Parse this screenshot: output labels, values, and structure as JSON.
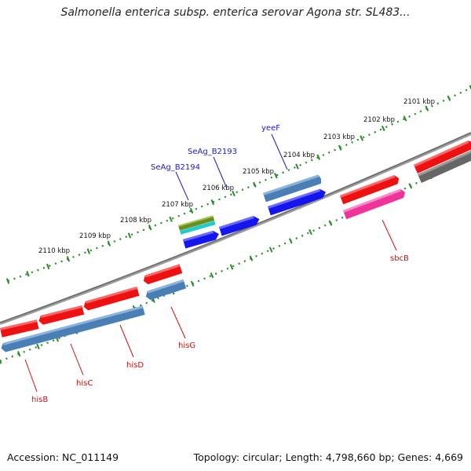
{
  "title": "Salmonella enterica subsp. enterica serovar Agona str. SL483...",
  "footer": {
    "accession": "Accession: NC_011149",
    "summary": "Topology: circular; Length: 4,798,660 bp; Genes: 4,669"
  },
  "colors": {
    "outer_ruler": "#2a8a2a",
    "backbone": "#8a8a8a",
    "red_feature": "#ee1111",
    "steelblue_feature": "#4a7fb5",
    "blue_feature": "#1515ee",
    "pink_feature": "#ee3399",
    "gray_feature": "#666666",
    "olive_feature": "#6b8e23",
    "cyan_feature": "#22cccc",
    "blue_label": "#1a1acc",
    "red_label": "#cc1111"
  },
  "kbp_ticks": [
    "2101 kbp",
    "2102 kbp",
    "2103 kbp",
    "2104 kbp",
    "2105 kbp",
    "2106 kbp",
    "2107 kbp",
    "2108 kbp",
    "2109 kbp",
    "2110 kbp"
  ],
  "genes": {
    "yeeF": "yeeF",
    "SeAg_B2193": "SeAg_B2193",
    "SeAg_B2194": "SeAg_B2194",
    "sbcB": "sbcB",
    "hisG": "hisG",
    "hisD": "hisD",
    "hisC": "hisC",
    "hisB": "hisB"
  }
}
